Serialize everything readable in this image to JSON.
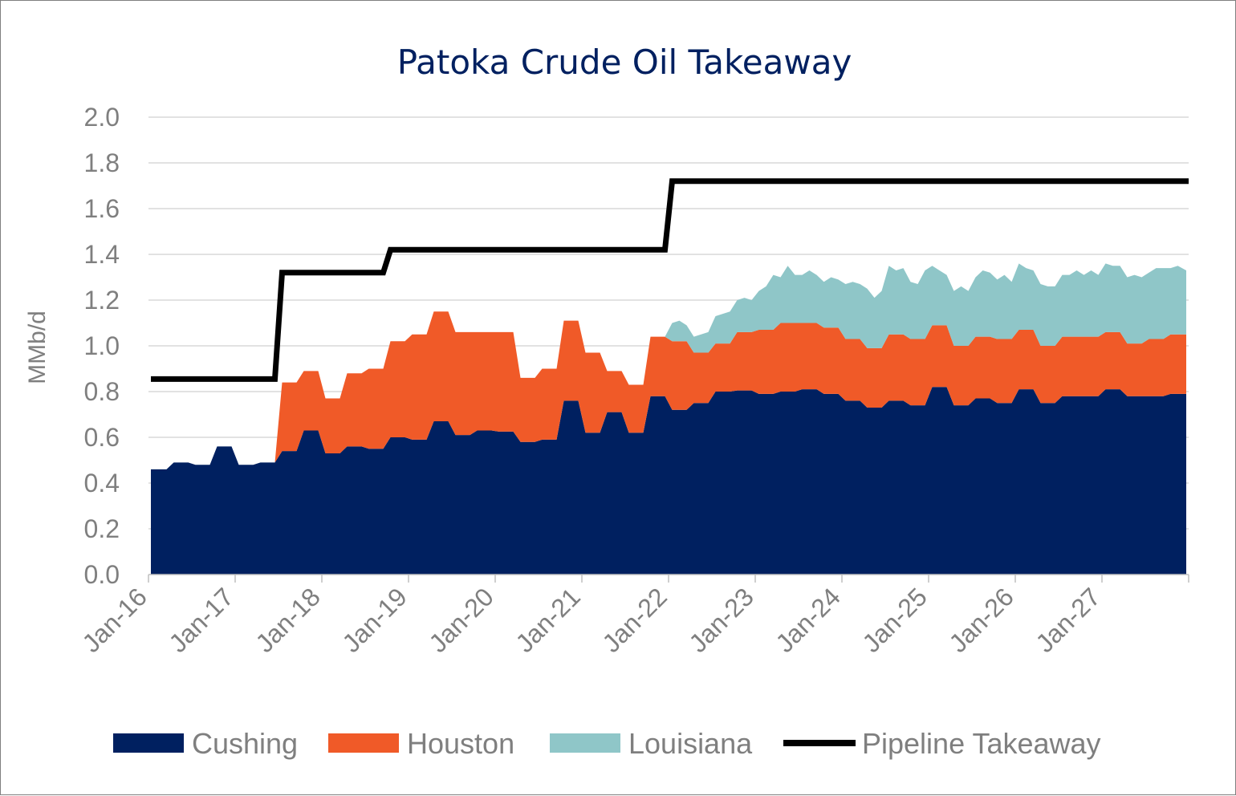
{
  "chart_data": {
    "type": "area",
    "title": "Patoka Crude Oil Takeaway",
    "ylabel": "MMb/d",
    "xlabel": "",
    "ylim": [
      0,
      2.0
    ],
    "y_ticks": [
      "0.0",
      "0.2",
      "0.4",
      "0.6",
      "0.8",
      "1.0",
      "1.2",
      "1.4",
      "1.6",
      "1.8",
      "2.0"
    ],
    "x_ticks": [
      "Jan-16",
      "Jan-17",
      "Jan-18",
      "Jan-19",
      "Jan-20",
      "Jan-21",
      "Jan-22",
      "Jan-23",
      "Jan-24",
      "Jan-25",
      "Jan-26",
      "Jan-27"
    ],
    "x_range": [
      "2016-01",
      "2027-12"
    ],
    "grid": "horizontal",
    "legend_position": "bottom",
    "colors": {
      "Cushing": "#002060",
      "Houston": "#f05a28",
      "Louisiana": "#8fc6c8",
      "Pipeline Takeaway": "#000000"
    },
    "series": [
      {
        "name": "Cushing",
        "kind": "stacked-area",
        "points": [
          [
            "2016-01",
            0.46
          ],
          [
            "2016-03",
            0.46
          ],
          [
            "2016-04",
            0.49
          ],
          [
            "2016-06",
            0.49
          ],
          [
            "2016-07",
            0.48
          ],
          [
            "2016-09",
            0.48
          ],
          [
            "2016-10",
            0.56
          ],
          [
            "2016-12",
            0.56
          ],
          [
            "2017-01",
            0.48
          ],
          [
            "2017-03",
            0.48
          ],
          [
            "2017-04",
            0.49
          ],
          [
            "2017-06",
            0.49
          ],
          [
            "2017-07",
            0.54
          ],
          [
            "2017-09",
            0.54
          ],
          [
            "2017-10",
            0.63
          ],
          [
            "2017-12",
            0.63
          ],
          [
            "2018-01",
            0.53
          ],
          [
            "2018-03",
            0.53
          ],
          [
            "2018-04",
            0.56
          ],
          [
            "2018-06",
            0.56
          ],
          [
            "2018-07",
            0.55
          ],
          [
            "2018-09",
            0.55
          ],
          [
            "2018-10",
            0.6
          ],
          [
            "2018-12",
            0.6
          ],
          [
            "2019-01",
            0.59
          ],
          [
            "2019-03",
            0.59
          ],
          [
            "2019-04",
            0.67
          ],
          [
            "2019-06",
            0.67
          ],
          [
            "2019-07",
            0.61
          ],
          [
            "2019-09",
            0.61
          ],
          [
            "2019-10",
            0.63
          ],
          [
            "2019-12",
            0.63
          ],
          [
            "2020-01",
            0.625
          ],
          [
            "2020-03",
            0.625
          ],
          [
            "2020-04",
            0.58
          ],
          [
            "2020-06",
            0.58
          ],
          [
            "2020-07",
            0.59
          ],
          [
            "2020-09",
            0.59
          ],
          [
            "2020-10",
            0.76
          ],
          [
            "2020-12",
            0.76
          ],
          [
            "2021-01",
            0.62
          ],
          [
            "2021-03",
            0.62
          ],
          [
            "2021-04",
            0.71
          ],
          [
            "2021-06",
            0.71
          ],
          [
            "2021-07",
            0.62
          ],
          [
            "2021-09",
            0.62
          ],
          [
            "2021-10",
            0.78
          ],
          [
            "2021-12",
            0.78
          ],
          [
            "2022-01",
            0.72
          ],
          [
            "2022-03",
            0.72
          ],
          [
            "2022-04",
            0.75
          ],
          [
            "2022-06",
            0.75
          ],
          [
            "2022-07",
            0.8
          ],
          [
            "2022-09",
            0.8
          ],
          [
            "2022-10",
            0.805
          ],
          [
            "2022-12",
            0.805
          ],
          [
            "2023-01",
            0.79
          ],
          [
            "2023-03",
            0.79
          ],
          [
            "2023-04",
            0.8
          ],
          [
            "2023-06",
            0.8
          ],
          [
            "2023-07",
            0.81
          ],
          [
            "2023-09",
            0.81
          ],
          [
            "2023-10",
            0.79
          ],
          [
            "2023-12",
            0.79
          ],
          [
            "2024-01",
            0.76
          ],
          [
            "2024-03",
            0.76
          ],
          [
            "2024-04",
            0.73
          ],
          [
            "2024-06",
            0.73
          ],
          [
            "2024-07",
            0.76
          ],
          [
            "2024-09",
            0.76
          ],
          [
            "2024-10",
            0.74
          ],
          [
            "2024-12",
            0.74
          ],
          [
            "2025-01",
            0.82
          ],
          [
            "2025-03",
            0.82
          ],
          [
            "2025-04",
            0.74
          ],
          [
            "2025-06",
            0.74
          ],
          [
            "2025-07",
            0.77
          ],
          [
            "2025-09",
            0.77
          ],
          [
            "2025-10",
            0.75
          ],
          [
            "2025-12",
            0.75
          ],
          [
            "2026-01",
            0.81
          ],
          [
            "2026-03",
            0.81
          ],
          [
            "2026-04",
            0.75
          ],
          [
            "2026-06",
            0.75
          ],
          [
            "2026-07",
            0.78
          ],
          [
            "2026-09",
            0.78
          ],
          [
            "2026-10",
            0.78
          ],
          [
            "2026-12",
            0.78
          ],
          [
            "2027-01",
            0.81
          ],
          [
            "2027-03",
            0.81
          ],
          [
            "2027-04",
            0.78
          ],
          [
            "2027-06",
            0.78
          ],
          [
            "2027-07",
            0.78
          ],
          [
            "2027-09",
            0.78
          ],
          [
            "2027-10",
            0.79
          ],
          [
            "2027-12",
            0.79
          ]
        ]
      },
      {
        "name": "Houston",
        "kind": "stacked-area",
        "points": [
          [
            "2016-01",
            0
          ],
          [
            "2017-06",
            0
          ],
          [
            "2017-07",
            0.3
          ],
          [
            "2017-09",
            0.3
          ],
          [
            "2017-10",
            0.26
          ],
          [
            "2017-12",
            0.26
          ],
          [
            "2018-01",
            0.24
          ],
          [
            "2018-03",
            0.24
          ],
          [
            "2018-04",
            0.32
          ],
          [
            "2018-06",
            0.32
          ],
          [
            "2018-07",
            0.35
          ],
          [
            "2018-09",
            0.35
          ],
          [
            "2018-10",
            0.42
          ],
          [
            "2018-12",
            0.42
          ],
          [
            "2019-01",
            0.46
          ],
          [
            "2019-03",
            0.46
          ],
          [
            "2019-04",
            0.48
          ],
          [
            "2019-06",
            0.48
          ],
          [
            "2019-07",
            0.45
          ],
          [
            "2019-09",
            0.45
          ],
          [
            "2019-10",
            0.43
          ],
          [
            "2019-12",
            0.43
          ],
          [
            "2020-01",
            0.435
          ],
          [
            "2020-03",
            0.435
          ],
          [
            "2020-04",
            0.28
          ],
          [
            "2020-06",
            0.28
          ],
          [
            "2020-07",
            0.31
          ],
          [
            "2020-09",
            0.31
          ],
          [
            "2020-10",
            0.35
          ],
          [
            "2020-12",
            0.35
          ],
          [
            "2021-01",
            0.35
          ],
          [
            "2021-03",
            0.35
          ],
          [
            "2021-04",
            0.18
          ],
          [
            "2021-06",
            0.18
          ],
          [
            "2021-07",
            0.21
          ],
          [
            "2021-09",
            0.21
          ],
          [
            "2021-10",
            0.26
          ],
          [
            "2021-12",
            0.26
          ],
          [
            "2022-01",
            0.3
          ],
          [
            "2022-03",
            0.3
          ],
          [
            "2022-04",
            0.22
          ],
          [
            "2022-06",
            0.22
          ],
          [
            "2022-07",
            0.21
          ],
          [
            "2022-09",
            0.21
          ],
          [
            "2022-10",
            0.255
          ],
          [
            "2022-12",
            0.255
          ],
          [
            "2023-01",
            0.28
          ],
          [
            "2023-03",
            0.28
          ],
          [
            "2023-04",
            0.3
          ],
          [
            "2023-06",
            0.3
          ],
          [
            "2023-07",
            0.29
          ],
          [
            "2023-09",
            0.29
          ],
          [
            "2023-10",
            0.29
          ],
          [
            "2023-12",
            0.29
          ],
          [
            "2024-01",
            0.27
          ],
          [
            "2024-03",
            0.27
          ],
          [
            "2024-04",
            0.26
          ],
          [
            "2024-06",
            0.26
          ],
          [
            "2024-07",
            0.29
          ],
          [
            "2024-09",
            0.29
          ],
          [
            "2024-10",
            0.29
          ],
          [
            "2024-12",
            0.29
          ],
          [
            "2025-01",
            0.27
          ],
          [
            "2025-03",
            0.27
          ],
          [
            "2025-04",
            0.26
          ],
          [
            "2025-06",
            0.26
          ],
          [
            "2025-07",
            0.27
          ],
          [
            "2025-09",
            0.27
          ],
          [
            "2025-10",
            0.28
          ],
          [
            "2025-12",
            0.28
          ],
          [
            "2026-01",
            0.26
          ],
          [
            "2026-03",
            0.26
          ],
          [
            "2026-04",
            0.25
          ],
          [
            "2026-06",
            0.25
          ],
          [
            "2026-07",
            0.26
          ],
          [
            "2026-09",
            0.26
          ],
          [
            "2026-10",
            0.26
          ],
          [
            "2026-12",
            0.26
          ],
          [
            "2027-01",
            0.25
          ],
          [
            "2027-03",
            0.25
          ],
          [
            "2027-04",
            0.23
          ],
          [
            "2027-06",
            0.23
          ],
          [
            "2027-07",
            0.25
          ],
          [
            "2027-09",
            0.25
          ],
          [
            "2027-10",
            0.26
          ],
          [
            "2027-12",
            0.26
          ]
        ]
      },
      {
        "name": "Louisiana",
        "kind": "stacked-area",
        "points": [
          [
            "2016-01",
            0
          ],
          [
            "2021-12",
            0
          ],
          [
            "2022-01",
            0.08
          ],
          [
            "2022-02",
            0.09
          ],
          [
            "2022-03",
            0.07
          ],
          [
            "2022-04",
            0.07
          ],
          [
            "2022-05",
            0.08
          ],
          [
            "2022-06",
            0.09
          ],
          [
            "2022-07",
            0.12
          ],
          [
            "2022-08",
            0.13
          ],
          [
            "2022-09",
            0.14
          ],
          [
            "2022-10",
            0.14
          ],
          [
            "2022-11",
            0.15
          ],
          [
            "2022-12",
            0.14
          ],
          [
            "2023-01",
            0.17
          ],
          [
            "2023-02",
            0.19
          ],
          [
            "2023-03",
            0.24
          ],
          [
            "2023-04",
            0.2
          ],
          [
            "2023-05",
            0.25
          ],
          [
            "2023-06",
            0.21
          ],
          [
            "2023-07",
            0.21
          ],
          [
            "2023-08",
            0.23
          ],
          [
            "2023-09",
            0.21
          ],
          [
            "2023-10",
            0.2
          ],
          [
            "2023-11",
            0.22
          ],
          [
            "2023-12",
            0.21
          ],
          [
            "2024-01",
            0.24
          ],
          [
            "2024-02",
            0.25
          ],
          [
            "2024-03",
            0.24
          ],
          [
            "2024-04",
            0.26
          ],
          [
            "2024-05",
            0.22
          ],
          [
            "2024-06",
            0.25
          ],
          [
            "2024-07",
            0.3
          ],
          [
            "2024-08",
            0.28
          ],
          [
            "2024-09",
            0.29
          ],
          [
            "2024-10",
            0.25
          ],
          [
            "2024-11",
            0.24
          ],
          [
            "2024-12",
            0.3
          ],
          [
            "2025-01",
            0.26
          ],
          [
            "2025-02",
            0.24
          ],
          [
            "2025-03",
            0.22
          ],
          [
            "2025-04",
            0.24
          ],
          [
            "2025-05",
            0.26
          ],
          [
            "2025-06",
            0.24
          ],
          [
            "2025-07",
            0.26
          ],
          [
            "2025-08",
            0.29
          ],
          [
            "2025-09",
            0.28
          ],
          [
            "2025-10",
            0.26
          ],
          [
            "2025-11",
            0.28
          ],
          [
            "2025-12",
            0.25
          ],
          [
            "2026-01",
            0.29
          ],
          [
            "2026-02",
            0.27
          ],
          [
            "2026-03",
            0.26
          ],
          [
            "2026-04",
            0.27
          ],
          [
            "2026-05",
            0.26
          ],
          [
            "2026-06",
            0.26
          ],
          [
            "2026-07",
            0.27
          ],
          [
            "2026-08",
            0.27
          ],
          [
            "2026-09",
            0.29
          ],
          [
            "2026-10",
            0.27
          ],
          [
            "2026-11",
            0.29
          ],
          [
            "2026-12",
            0.27
          ],
          [
            "2027-01",
            0.3
          ],
          [
            "2027-02",
            0.29
          ],
          [
            "2027-03",
            0.29
          ],
          [
            "2027-04",
            0.29
          ],
          [
            "2027-05",
            0.3
          ],
          [
            "2027-06",
            0.29
          ],
          [
            "2027-07",
            0.29
          ],
          [
            "2027-08",
            0.31
          ],
          [
            "2027-09",
            0.31
          ],
          [
            "2027-10",
            0.29
          ],
          [
            "2027-11",
            0.3
          ],
          [
            "2027-12",
            0.28
          ]
        ]
      },
      {
        "name": "Pipeline Takeaway",
        "kind": "step-line",
        "points": [
          [
            "2016-01",
            0.855
          ],
          [
            "2017-06",
            0.855
          ],
          [
            "2017-07",
            1.32
          ],
          [
            "2018-09",
            1.32
          ],
          [
            "2018-10",
            1.42
          ],
          [
            "2021-12",
            1.42
          ],
          [
            "2022-01",
            1.72
          ],
          [
            "2027-12",
            1.72
          ]
        ]
      }
    ]
  }
}
